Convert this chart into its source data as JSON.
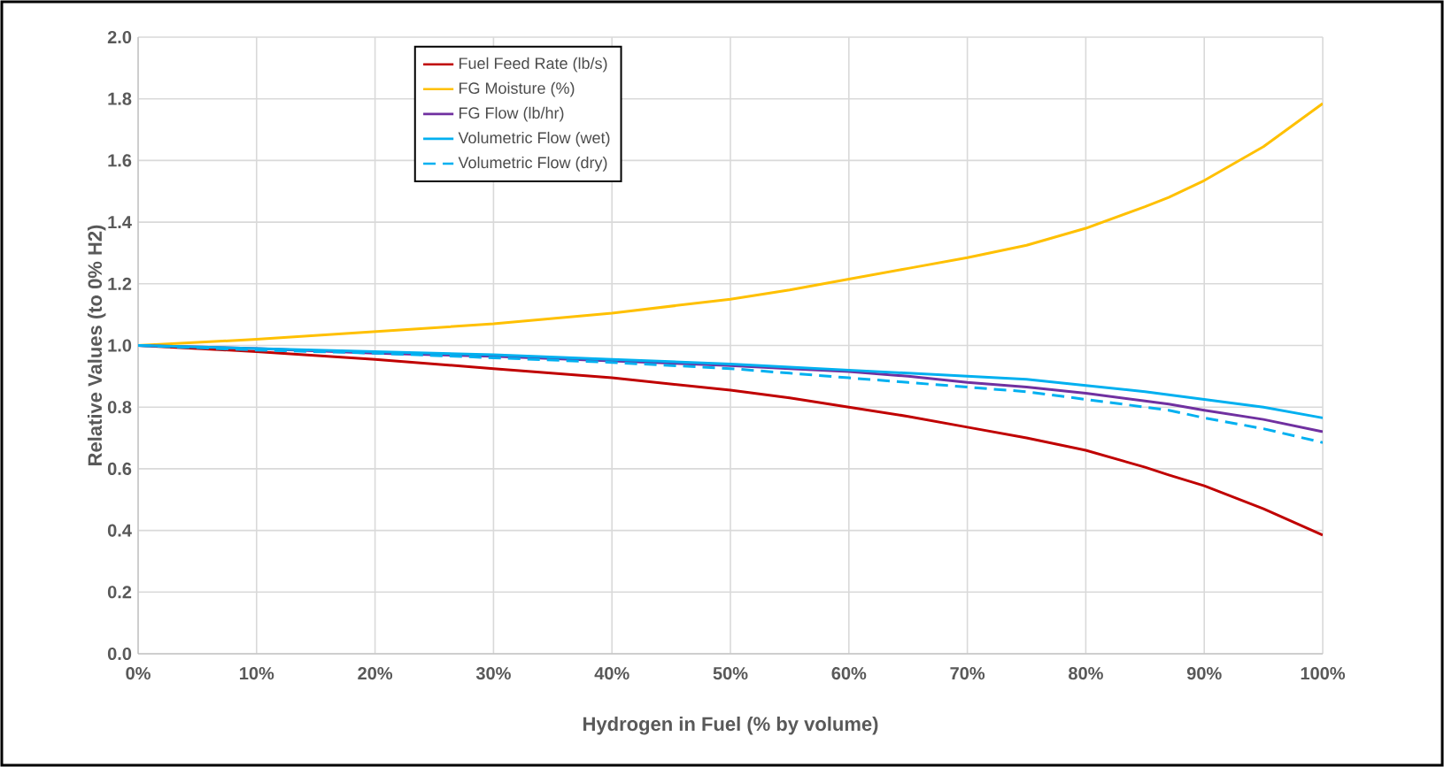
{
  "chart_data": {
    "type": "line",
    "xlabel": "Hydrogen in Fuel (% by volume)",
    "ylabel": "Relative Values (to 0% H2)",
    "x": [
      0,
      10,
      20,
      30,
      40,
      50,
      55,
      60,
      65,
      70,
      75,
      80,
      85,
      87,
      90,
      95,
      100
    ],
    "series": [
      {
        "name": "Fuel Feed Rate (lb/s)",
        "color": "#c00000",
        "values": [
          1.0,
          0.98,
          0.955,
          0.925,
          0.895,
          0.855,
          0.83,
          0.8,
          0.77,
          0.735,
          0.7,
          0.66,
          0.605,
          0.58,
          0.545,
          0.47,
          0.385
        ]
      },
      {
        "name": "FG Moisture (%)",
        "color": "#ffc000",
        "values": [
          1.0,
          1.02,
          1.045,
          1.07,
          1.105,
          1.15,
          1.18,
          1.215,
          1.25,
          1.285,
          1.325,
          1.38,
          1.45,
          1.48,
          1.535,
          1.645,
          1.785
        ]
      },
      {
        "name": "FG Flow (lb/hr)",
        "color": "#7030a0",
        "values": [
          1.0,
          0.99,
          0.975,
          0.965,
          0.95,
          0.935,
          0.925,
          0.915,
          0.9,
          0.88,
          0.865,
          0.845,
          0.82,
          0.81,
          0.79,
          0.76,
          0.72
        ]
      },
      {
        "name": "Volumetric Flow (wet)",
        "color": "#00b0f0",
        "values": [
          1.0,
          0.99,
          0.98,
          0.97,
          0.955,
          0.94,
          0.93,
          0.92,
          0.91,
          0.9,
          0.89,
          0.87,
          0.85,
          0.84,
          0.825,
          0.8,
          0.765
        ]
      },
      {
        "name": "Volumetric Flow (dry)",
        "color": "#00b0f0",
        "line_style": "dashed",
        "values": [
          1.0,
          0.985,
          0.975,
          0.96,
          0.945,
          0.925,
          0.91,
          0.895,
          0.88,
          0.865,
          0.85,
          0.825,
          0.8,
          0.79,
          0.765,
          0.73,
          0.685
        ]
      }
    ],
    "xlim": [
      0,
      100
    ],
    "ylim": [
      0,
      2
    ],
    "xticks": [
      {
        "value": 0,
        "label": "0%"
      },
      {
        "value": 10,
        "label": "10%"
      },
      {
        "value": 20,
        "label": "20%"
      },
      {
        "value": 30,
        "label": "30%"
      },
      {
        "value": 40,
        "label": "40%"
      },
      {
        "value": 50,
        "label": "50%"
      },
      {
        "value": 60,
        "label": "60%"
      },
      {
        "value": 70,
        "label": "70%"
      },
      {
        "value": 80,
        "label": "80%"
      },
      {
        "value": 90,
        "label": "90%"
      },
      {
        "value": 100,
        "label": "100%"
      }
    ],
    "yticks": [
      {
        "value": 0,
        "label": "0.0"
      },
      {
        "value": 0.2,
        "label": "0.2"
      },
      {
        "value": 0.4,
        "label": "0.4"
      },
      {
        "value": 0.6,
        "label": "0.6"
      },
      {
        "value": 0.8,
        "label": "0.8"
      },
      {
        "value": 1.0,
        "label": "1.0"
      },
      {
        "value": 1.2,
        "label": "1.2"
      },
      {
        "value": 1.4,
        "label": "1.4"
      },
      {
        "value": 1.6,
        "label": "1.6"
      },
      {
        "value": 1.8,
        "label": "1.8"
      },
      {
        "value": 2.0,
        "label": "2.0"
      }
    ],
    "grid": true,
    "legend": "top left",
    "marker": "none",
    "line_style": "solid"
  }
}
